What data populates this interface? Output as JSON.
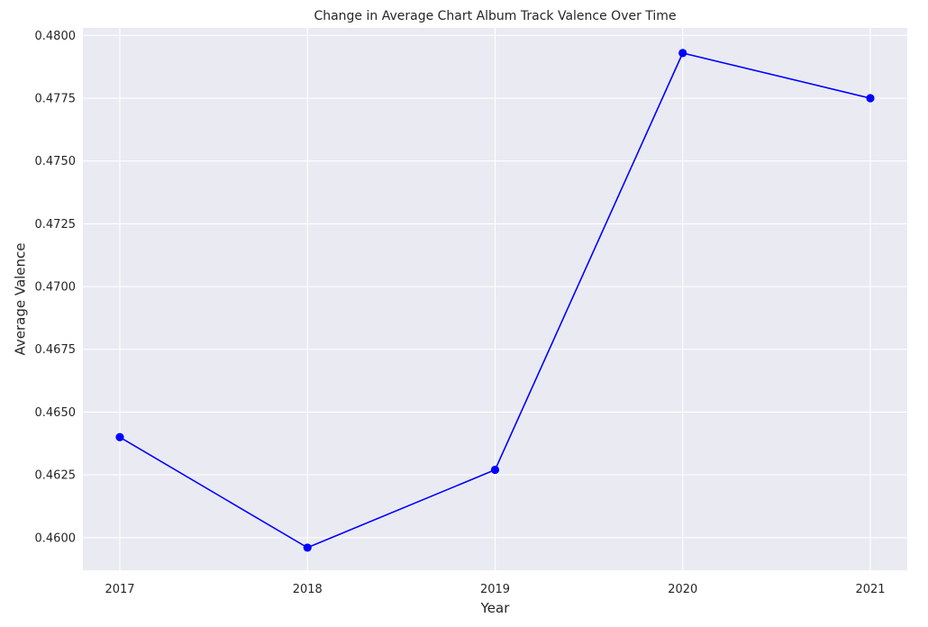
{
  "chart_data": {
    "type": "line",
    "title": "Change in Average Chart Album Track Valence Over Time",
    "xlabel": "Year",
    "ylabel": "Average Valence",
    "x": [
      "2017",
      "2018",
      "2019",
      "2020",
      "2021"
    ],
    "series": [
      {
        "values": [
          0.464,
          0.4596,
          0.4627,
          0.4793,
          0.4775
        ],
        "color": "#0000ff",
        "marker": "circle"
      }
    ],
    "yticks": [
      "0.4600",
      "0.4625",
      "0.4650",
      "0.4675",
      "0.4700",
      "0.4725",
      "0.4750",
      "0.4775",
      "0.4800"
    ],
    "ylim": [
      0.4587,
      0.4803
    ],
    "grid": true,
    "plot_background": "#eaeaf2",
    "grid_color": "#ffffff"
  }
}
